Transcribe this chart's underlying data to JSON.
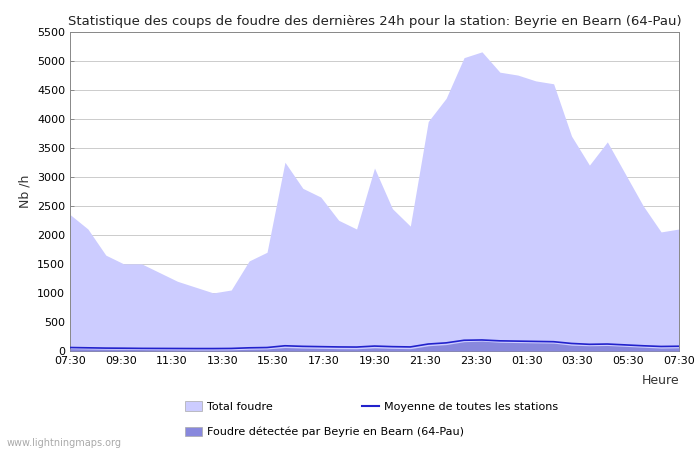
{
  "title": "Statistique des coups de foudre des dernières 24h pour la station: Beyrie en Bearn (64-Pau)",
  "xlabel": "Heure",
  "ylabel": "Nb /h",
  "ylim": [
    0,
    5500
  ],
  "yticks": [
    0,
    500,
    1000,
    1500,
    2000,
    2500,
    3000,
    3500,
    4000,
    4500,
    5000,
    5500
  ],
  "xtick_labels": [
    "07:30",
    "09:30",
    "11:30",
    "13:30",
    "15:30",
    "17:30",
    "19:30",
    "21:30",
    "23:30",
    "01:30",
    "03:30",
    "05:30",
    "07:30"
  ],
  "watermark": "www.lightningmaps.org",
  "total_foudre_color": "#ccccff",
  "station_foudre_color": "#8888dd",
  "moyenne_color": "#2222cc",
  "background_color": "#ffffff",
  "total_foudre_values": [
    2350,
    2100,
    1650,
    1500,
    1500,
    1350,
    1200,
    1100,
    1000,
    1050,
    1550,
    1700,
    3250,
    2800,
    2650,
    2250,
    2100,
    3150,
    2450,
    2150,
    3950,
    4350,
    5050,
    5150,
    4800,
    4750,
    4650,
    4600,
    3700,
    3200,
    3600,
    3050,
    2500,
    2050,
    2100
  ],
  "station_foudre_values": [
    40,
    35,
    30,
    28,
    25,
    22,
    20,
    18,
    18,
    20,
    30,
    35,
    60,
    50,
    45,
    40,
    38,
    55,
    45,
    40,
    90,
    110,
    160,
    170,
    150,
    145,
    140,
    135,
    100,
    90,
    95,
    80,
    65,
    50,
    55
  ],
  "moyenne_values": [
    60,
    55,
    50,
    48,
    45,
    44,
    43,
    42,
    42,
    44,
    55,
    60,
    90,
    80,
    75,
    70,
    68,
    85,
    75,
    70,
    120,
    140,
    185,
    190,
    175,
    170,
    165,
    160,
    130,
    115,
    120,
    105,
    90,
    78,
    82
  ],
  "n_points": 35
}
